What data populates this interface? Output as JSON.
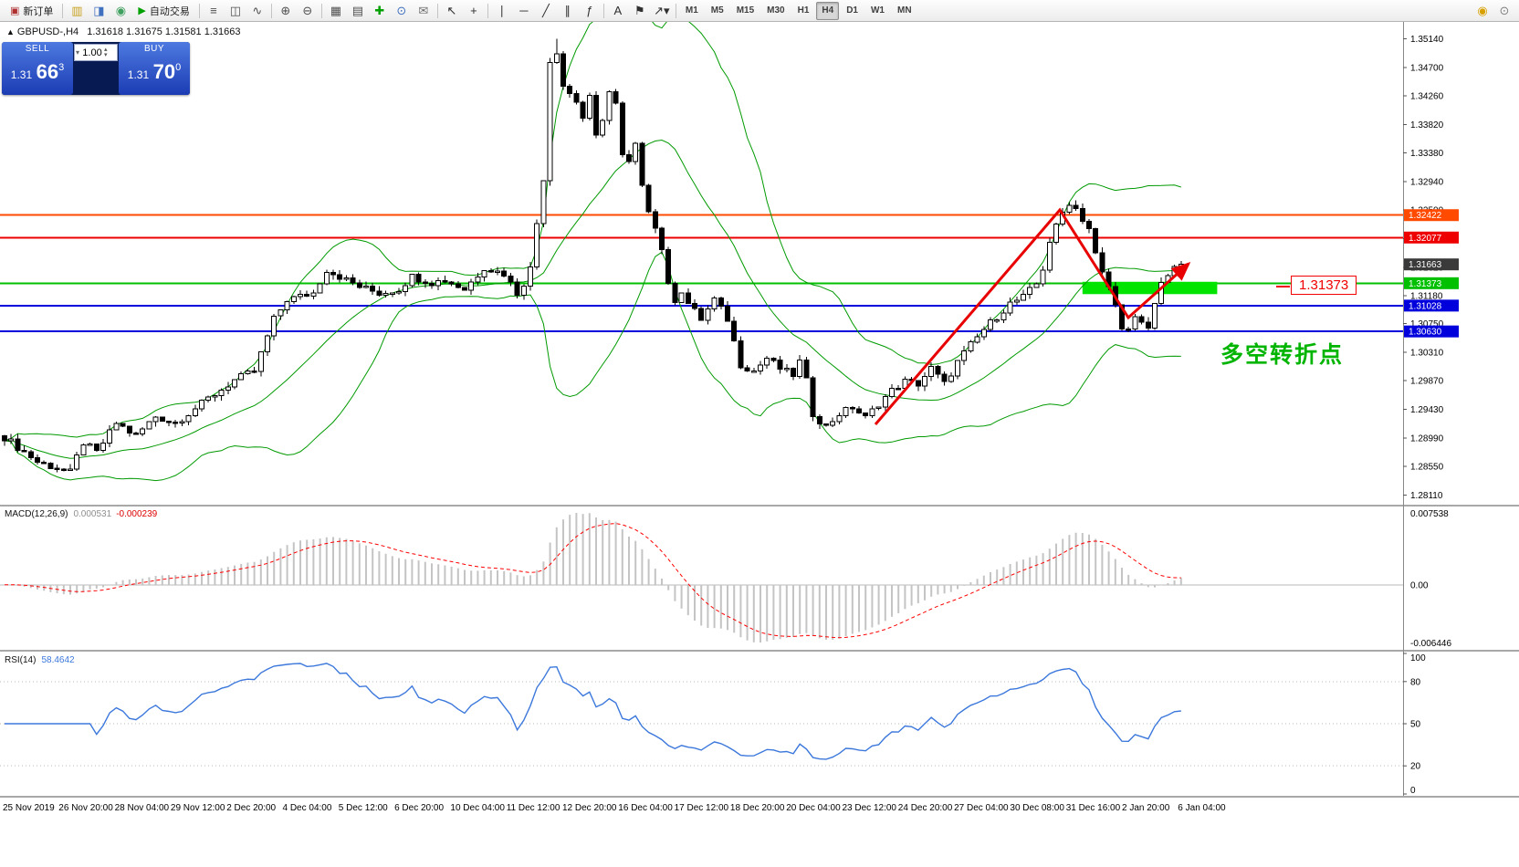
{
  "header": {
    "arrow": "▲",
    "symbol": "GBPUSD-,H4",
    "ohlc": "1.31618 1.31675 1.31581 1.31663"
  },
  "toolbar": {
    "active_timeframe": "H4",
    "items": [
      {
        "t": "btn",
        "name": "new-order-button",
        "glyph": "▣",
        "gc": "#b03030",
        "label": "新订单"
      },
      {
        "t": "sep"
      },
      {
        "t": "icon",
        "name": "charts-toolbar-icon",
        "glyph": "▥",
        "gc": "#c8a020"
      },
      {
        "t": "icon",
        "name": "profiles-icon",
        "glyph": "◨",
        "gc": "#4070c0"
      },
      {
        "t": "icon",
        "name": "refresh-icon",
        "glyph": "◉",
        "gc": "#40a060"
      },
      {
        "t": "btn",
        "name": "autotrading-button",
        "glyph": "▶",
        "gc": "#00a000",
        "label": "自动交易"
      },
      {
        "t": "sep"
      },
      {
        "t": "icon",
        "name": "bar-chart-type-icon",
        "glyph": "≡",
        "gc": "#505050"
      },
      {
        "t": "icon",
        "name": "candlestick-type-icon",
        "glyph": "◫",
        "gc": "#505050"
      },
      {
        "t": "icon",
        "name": "line-chart-type-icon",
        "glyph": "∿",
        "gc": "#505050"
      },
      {
        "t": "sep"
      },
      {
        "t": "icon",
        "name": "zoom-in-icon",
        "glyph": "⊕",
        "gc": "#505050"
      },
      {
        "t": "icon",
        "name": "zoom-out-icon",
        "glyph": "⊖",
        "gc": "#505050"
      },
      {
        "t": "sep"
      },
      {
        "t": "icon",
        "name": "tile-windows-icon",
        "glyph": "▦",
        "gc": "#505050"
      },
      {
        "t": "icon",
        "name": "cascade-windows-icon",
        "glyph": "▤",
        "gc": "#505050"
      },
      {
        "t": "icon",
        "name": "new-chart-icon",
        "glyph": "✚",
        "gc": "#00a000"
      },
      {
        "t": "icon",
        "name": "period-icon",
        "glyph": "⊙",
        "gc": "#4070c0"
      },
      {
        "t": "icon",
        "name": "templates-icon",
        "glyph": "✉",
        "gc": "#707070"
      },
      {
        "t": "sep"
      },
      {
        "t": "icon",
        "name": "cursor-icon",
        "glyph": "↖",
        "gc": "#303030"
      },
      {
        "t": "icon",
        "name": "crosshair-icon",
        "glyph": "+",
        "gc": "#303030"
      },
      {
        "t": "sep"
      },
      {
        "t": "icon",
        "name": "vertical-line-icon",
        "glyph": "∣",
        "gc": "#303030"
      },
      {
        "t": "icon",
        "name": "horizontal-line-icon",
        "glyph": "─",
        "gc": "#303030"
      },
      {
        "t": "icon",
        "name": "trendline-icon",
        "glyph": "╱",
        "gc": "#303030"
      },
      {
        "t": "icon",
        "name": "channel-icon",
        "glyph": "∥",
        "gc": "#303030"
      },
      {
        "t": "icon",
        "name": "fibonacci-icon",
        "glyph": "ƒ",
        "gc": "#303030"
      },
      {
        "t": "sep"
      },
      {
        "t": "icon",
        "name": "text-tool-icon",
        "glyph": "A",
        "gc": "#303030"
      },
      {
        "t": "icon",
        "name": "label-tool-icon",
        "glyph": "⚑",
        "gc": "#303030"
      },
      {
        "t": "icon",
        "name": "shapes-dropdown-icon",
        "glyph": "↗▾",
        "gc": "#303030"
      },
      {
        "t": "sep"
      },
      {
        "t": "tf",
        "name": "timeframe-m1",
        "label": "M1"
      },
      {
        "t": "tf",
        "name": "timeframe-m5",
        "label": "M5"
      },
      {
        "t": "tf",
        "name": "timeframe-m15",
        "label": "M15"
      },
      {
        "t": "tf",
        "name": "timeframe-m30",
        "label": "M30"
      },
      {
        "t": "tf",
        "name": "timeframe-h1",
        "label": "H1"
      },
      {
        "t": "tf",
        "name": "timeframe-h4",
        "label": "H4"
      },
      {
        "t": "tf",
        "name": "timeframe-d1",
        "label": "D1"
      },
      {
        "t": "tf",
        "name": "timeframe-w1",
        "label": "W1"
      },
      {
        "t": "tf",
        "name": "timeframe-mn",
        "label": "MN"
      },
      {
        "t": "spacer"
      },
      {
        "t": "icon",
        "name": "community-icon",
        "glyph": "◉",
        "gc": "#d8a000"
      },
      {
        "t": "icon",
        "name": "search-icon",
        "glyph": "⊙",
        "gc": "#808080"
      }
    ]
  },
  "one_click": {
    "sell_label": "SELL",
    "buy_label": "BUY",
    "volume": "1.00",
    "sell_big": "1.31",
    "sell_pips": "66",
    "sell_sup": "3",
    "buy_big": "1.31",
    "buy_pips": "70",
    "buy_sup": "0"
  },
  "indicators": {
    "macd_name": "MACD(12,26,9)",
    "macd_val1": "0.000531",
    "macd_val2": "-0.000239",
    "rsi_name": "RSI(14)",
    "rsi_val": "58.4642"
  },
  "annotation_text": "多空转折点",
  "price_tag": "1.31373",
  "chart": {
    "price_axis": {
      "top": 1.354,
      "bottom": 1.2796,
      "ticks": [
        "1.35140",
        "1.34700",
        "1.34260",
        "1.33820",
        "1.33380",
        "1.32940",
        "1.32500",
        "1.32060",
        "1.31620",
        "1.31180",
        "1.30750",
        "1.30310",
        "1.29870",
        "1.29430",
        "1.28990",
        "1.28550",
        "1.28110"
      ]
    },
    "flags": [
      {
        "price": 1.32422,
        "label": "1.32422",
        "color": "#ff4a00",
        "line": true,
        "lw": 2
      },
      {
        "price": 1.32077,
        "label": "1.32077",
        "color": "#ee0000",
        "line": true,
        "lw": 2
      },
      {
        "price": 1.31663,
        "label": "1.31663",
        "color": "#3a3a3a",
        "line": false,
        "lw": 0
      },
      {
        "price": 1.31373,
        "label": "1.31373",
        "color": "#00c000",
        "line": true,
        "lw": 2
      },
      {
        "price": 1.31028,
        "label": "1.31028",
        "color": "#0000dd",
        "line": true,
        "lw": 2
      },
      {
        "price": 1.3063,
        "label": "1.30630",
        "color": "#0000dd",
        "line": true,
        "lw": 2
      }
    ],
    "bands_color": "#009a00",
    "bars": 180,
    "waypoints": [
      [
        0,
        1.29
      ],
      [
        5,
        1.2862
      ],
      [
        10,
        1.2846
      ],
      [
        12,
        1.2892
      ],
      [
        14,
        1.2876
      ],
      [
        17,
        1.2922
      ],
      [
        20,
        1.2902
      ],
      [
        23,
        1.2932
      ],
      [
        26,
        1.2922
      ],
      [
        30,
        1.2952
      ],
      [
        35,
        1.2988
      ],
      [
        38,
        1.3002
      ],
      [
        41,
        1.3082
      ],
      [
        43,
        1.3112
      ],
      [
        47,
        1.3122
      ],
      [
        49,
        1.3158
      ],
      [
        52,
        1.3142
      ],
      [
        54,
        1.3132
      ],
      [
        57,
        1.3122
      ],
      [
        60,
        1.3128
      ],
      [
        62,
        1.3148
      ],
      [
        65,
        1.3138
      ],
      [
        67,
        1.3142
      ],
      [
        70,
        1.3128
      ],
      [
        73,
        1.3162
      ],
      [
        76,
        1.3152
      ],
      [
        78,
        1.3122
      ],
      [
        79,
        1.3138
      ],
      [
        80,
        1.316
      ],
      [
        82,
        1.33
      ],
      [
        83,
        1.348
      ],
      [
        84,
        1.3495
      ],
      [
        85,
        1.3442
      ],
      [
        86,
        1.343
      ],
      [
        87,
        1.3418
      ],
      [
        88,
        1.3392
      ],
      [
        89,
        1.3422
      ],
      [
        90,
        1.3362
      ],
      [
        91,
        1.3392
      ],
      [
        92,
        1.3432
      ],
      [
        93,
        1.3412
      ],
      [
        94,
        1.3332
      ],
      [
        95,
        1.3322
      ],
      [
        96,
        1.3348
      ],
      [
        97,
        1.3292
      ],
      [
        98,
        1.3252
      ],
      [
        100,
        1.3192
      ],
      [
        101,
        1.3132
      ],
      [
        102,
        1.3112
      ],
      [
        103,
        1.3126
      ],
      [
        104,
        1.3106
      ],
      [
        106,
        1.3082
      ],
      [
        108,
        1.3112
      ],
      [
        110,
        1.3082
      ],
      [
        112,
        1.3012
      ],
      [
        114,
        1.3002
      ],
      [
        116,
        1.3022
      ],
      [
        118,
        1.3006
      ],
      [
        120,
        1.2996
      ],
      [
        121,
        1.3016
      ],
      [
        122,
        1.2986
      ],
      [
        123,
        1.2936
      ],
      [
        125,
        1.2916
      ],
      [
        127,
        1.2936
      ],
      [
        129,
        1.2946
      ],
      [
        131,
        1.293
      ],
      [
        133,
        1.2952
      ],
      [
        135,
        1.2972
      ],
      [
        137,
        1.2986
      ],
      [
        139,
        1.2982
      ],
      [
        141,
        1.3006
      ],
      [
        143,
        1.2982
      ],
      [
        145,
        1.3016
      ],
      [
        147,
        1.3042
      ],
      [
        149,
        1.3066
      ],
      [
        151,
        1.3086
      ],
      [
        153,
        1.3106
      ],
      [
        155,
        1.3116
      ],
      [
        156,
        1.3126
      ],
      [
        157,
        1.3136
      ],
      [
        158,
        1.316
      ],
      [
        159,
        1.3202
      ],
      [
        161,
        1.3246
      ],
      [
        162,
        1.3262
      ],
      [
        163,
        1.3252
      ],
      [
        164,
        1.3236
      ],
      [
        165,
        1.3222
      ],
      [
        166,
        1.3182
      ],
      [
        167,
        1.3152
      ],
      [
        168,
        1.3132
      ],
      [
        169,
        1.3102
      ],
      [
        170,
        1.3072
      ],
      [
        171,
        1.3064
      ],
      [
        172,
        1.3082
      ],
      [
        173,
        1.3074
      ],
      [
        174,
        1.3068
      ],
      [
        176,
        1.3142
      ],
      [
        178,
        1.3158
      ],
      [
        179,
        1.31663
      ]
    ],
    "wick_high_override": {
      "84": 1.3514
    },
    "green_zone": {
      "bar1": 164,
      "bar2": 184.5,
      "price1": 1.31395,
      "price2": 1.31205,
      "color": "#00e400"
    },
    "trend_arrow": {
      "color": "#e80000",
      "points_bp": [
        [
          132.5,
          1.292
        ],
        [
          160.5,
          1.325
        ],
        [
          171,
          1.3085
        ],
        [
          180.2,
          1.3168
        ]
      ]
    },
    "macd_axis": [
      "0.007538",
      "0.00",
      "-0.006446"
    ],
    "rsi_axis": [
      {
        "v": 100,
        "label": "100"
      },
      {
        "v": 80,
        "label": "80"
      },
      {
        "v": 50,
        "label": "50"
      },
      {
        "v": 20,
        "label": "20"
      },
      {
        "v": 0,
        "label": "0"
      }
    ],
    "rsi_levels": [
      80,
      50,
      20
    ],
    "time_labels": [
      "25 Nov 2019",
      "26 Nov 20:00",
      "28 Nov 04:00",
      "29 Nov 12:00",
      "2 Dec 20:00",
      "4 Dec 04:00",
      "5 Dec 12:00",
      "6 Dec 20:00",
      "10 Dec 04:00",
      "11 Dec 12:00",
      "12 Dec 20:00",
      "16 Dec 04:00",
      "17 Dec 12:00",
      "18 Dec 20:00",
      "20 Dec 04:00",
      "23 Dec 12:00",
      "24 Dec 20:00",
      "27 Dec 04:00",
      "30 Dec 08:00",
      "31 Dec 16:00",
      "2 Jan 20:00",
      "6 Jan 04:00"
    ]
  }
}
